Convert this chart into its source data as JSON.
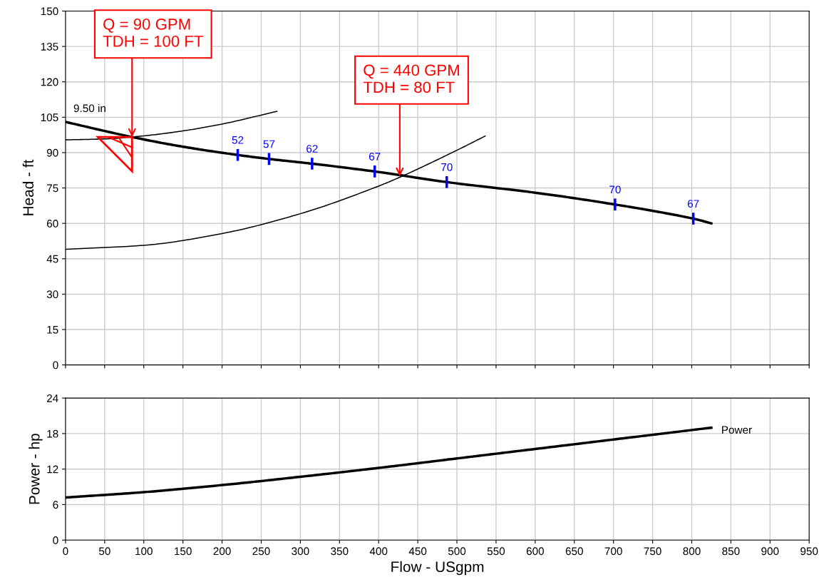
{
  "chart_data": [
    {
      "type": "line",
      "ylabel": "Head - ft",
      "xlim": [
        0,
        950
      ],
      "xticks": [
        0,
        50,
        100,
        150,
        200,
        250,
        300,
        350,
        400,
        450,
        500,
        550,
        600,
        650,
        700,
        750,
        800,
        850,
        900,
        950
      ],
      "ylim": [
        0,
        150
      ],
      "yticks": [
        0,
        15,
        30,
        45,
        60,
        75,
        90,
        105,
        120,
        135,
        150
      ],
      "grid": true,
      "tick_labels": "y",
      "series": [
        {
          "name": "9.50 in",
          "color": "#000000",
          "x": [
            0,
            85,
            150,
            220,
            260,
            315,
            395,
            487,
            600,
            702,
            802,
            825
          ],
          "values": [
            103,
            96.6,
            92.5,
            89,
            87.3,
            85.3,
            82,
            77.5,
            73,
            68,
            62,
            60
          ]
        },
        {
          "color": "#000000",
          "x": [
            0,
            50,
            100,
            150,
            200,
            270
          ],
          "values": [
            95.4,
            95.8,
            97.1,
            99.2,
            102.1,
            107.5
          ]
        },
        {
          "color": "#000000",
          "x": [
            0,
            100,
            200,
            300,
            400,
            430,
            500,
            536
          ],
          "values": [
            49,
            50.7,
            55.7,
            64.1,
            75.8,
            80,
            91,
            97
          ]
        }
      ],
      "annotations": [
        {
          "text": "Q = 90 GPM\nTDH = 100 FT",
          "x": 85,
          "y": 96.6
        },
        {
          "text": "Q = 440 GPM\nTDH = 80 FT",
          "x": 427,
          "y": 80
        },
        {
          "text": "52",
          "x": 220,
          "y": 89
        },
        {
          "text": "57",
          "x": 260,
          "y": 87.3
        },
        {
          "text": "62",
          "x": 315,
          "y": 85.3
        },
        {
          "text": "67",
          "x": 395,
          "y": 82
        },
        {
          "text": "70",
          "x": 487,
          "y": 77.5
        },
        {
          "text": "70",
          "x": 702,
          "y": 68
        },
        {
          "text": "67",
          "x": 802,
          "y": 62
        }
      ]
    },
    {
      "type": "line",
      "ylabel": "Power - hp",
      "xlabel": "Flow - USgpm",
      "xlim": [
        0,
        950
      ],
      "xticks": [
        0,
        50,
        100,
        150,
        200,
        250,
        300,
        350,
        400,
        450,
        500,
        550,
        600,
        650,
        700,
        750,
        800,
        850,
        900,
        950
      ],
      "ylim": [
        0,
        24
      ],
      "yticks": [
        0,
        6,
        12,
        18,
        24
      ],
      "grid": true,
      "series": [
        {
          "name": "Power",
          "color": "#000000",
          "x": [
            0,
            100,
            200,
            300,
            400,
            500,
            600,
            700,
            825
          ],
          "values": [
            7.2,
            8.1,
            9.3,
            10.7,
            12.2,
            13.8,
            15.4,
            17.0,
            19.0
          ]
        }
      ]
    }
  ]
}
